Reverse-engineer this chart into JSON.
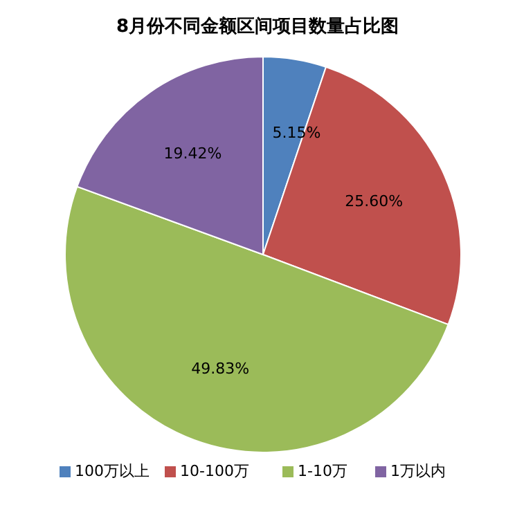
{
  "chart_data": {
    "type": "pie",
    "title": "8月份不同金额区间项目数量占比图",
    "categories": [
      "100万以上",
      "10-100万",
      "1-10万",
      "1万以内"
    ],
    "values": [
      5.15,
      25.6,
      49.83,
      19.42
    ],
    "colors": [
      "#4f81bd",
      "#c0504d",
      "#9bbb59",
      "#8064a2"
    ],
    "value_labels": [
      "5.15%",
      "25.60%",
      "49.83%",
      "19.42%"
    ],
    "legend": "bottom"
  }
}
